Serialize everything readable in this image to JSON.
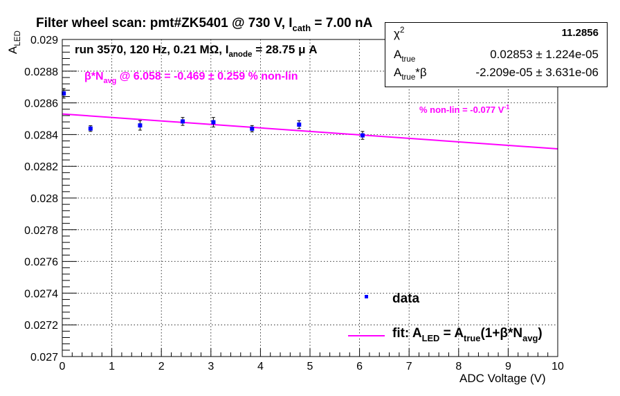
{
  "chart_data": {
    "type": "scatter",
    "title": "Filter wheel scan: pmt#ZK5401 @   730 V, I",
    "title_sub": "cath",
    "title_tail": " = 7.00 nA",
    "run_label": "run 3570, 120 Hz, 0.21 MΩ, I",
    "run_label_sub": "anode",
    "run_label_tail": " = 28.75 μ A",
    "annotation_1": "β*N",
    "annotation_1_sub": "avg",
    "annotation_1_tail": " @ 6.058 = -0.469 ± 0.259 % non-lin",
    "annotation_2": "% non-lin = -0.077 V",
    "annotation_2_sup": "-1",
    "xlabel": "ADC Voltage (V)",
    "ylabel": "A",
    "ylabel_sub": "LED",
    "xlim": [
      0,
      10
    ],
    "ylim": [
      0.027,
      0.029
    ],
    "xticks": [
      "0",
      "1",
      "2",
      "3",
      "4",
      "5",
      "6",
      "7",
      "8",
      "9",
      "10"
    ],
    "yticks": [
      "0.027",
      "0.0272",
      "0.0274",
      "0.0276",
      "0.0278",
      "0.028",
      "0.0282",
      "0.0284",
      "0.0286",
      "0.0288",
      "0.029"
    ],
    "grid": true,
    "series": [
      {
        "name": "data",
        "x": [
          0.03,
          0.57,
          1.57,
          2.43,
          3.05,
          3.83,
          4.78,
          6.06
        ],
        "y": [
          0.02866,
          0.028438,
          0.028458,
          0.028483,
          0.028478,
          0.028437,
          0.028463,
          0.028395
        ],
        "yerr": [
          3e-05,
          1.8e-05,
          3e-05,
          2.5e-05,
          3e-05,
          2e-05,
          2.5e-05,
          2.5e-05
        ],
        "color": "#0000ff"
      },
      {
        "name": "fit: A",
        "name_sub1": "LED",
        "name_mid": " = A",
        "name_sub2": "true",
        "name_mid2": "(1+β*N",
        "name_sub3": "avg",
        "name_tail": ")",
        "x": [
          0,
          10
        ],
        "y": [
          0.02853,
          0.02831
        ],
        "color": "#ff00ff"
      }
    ],
    "legend_position": "bottom-right",
    "stats": {
      "chi2_label": "χ",
      "chi2_sup": "2",
      "chi2_value": "11.2856",
      "a_true_label": "A",
      "a_true_sub": "true",
      "a_true_value": "0.02853 ± 1.224e-05",
      "a_beta_label": "A",
      "a_beta_sub": "true",
      "a_beta_tail": "*β",
      "a_beta_value": "-2.209e-05 ± 3.631e-06"
    }
  }
}
